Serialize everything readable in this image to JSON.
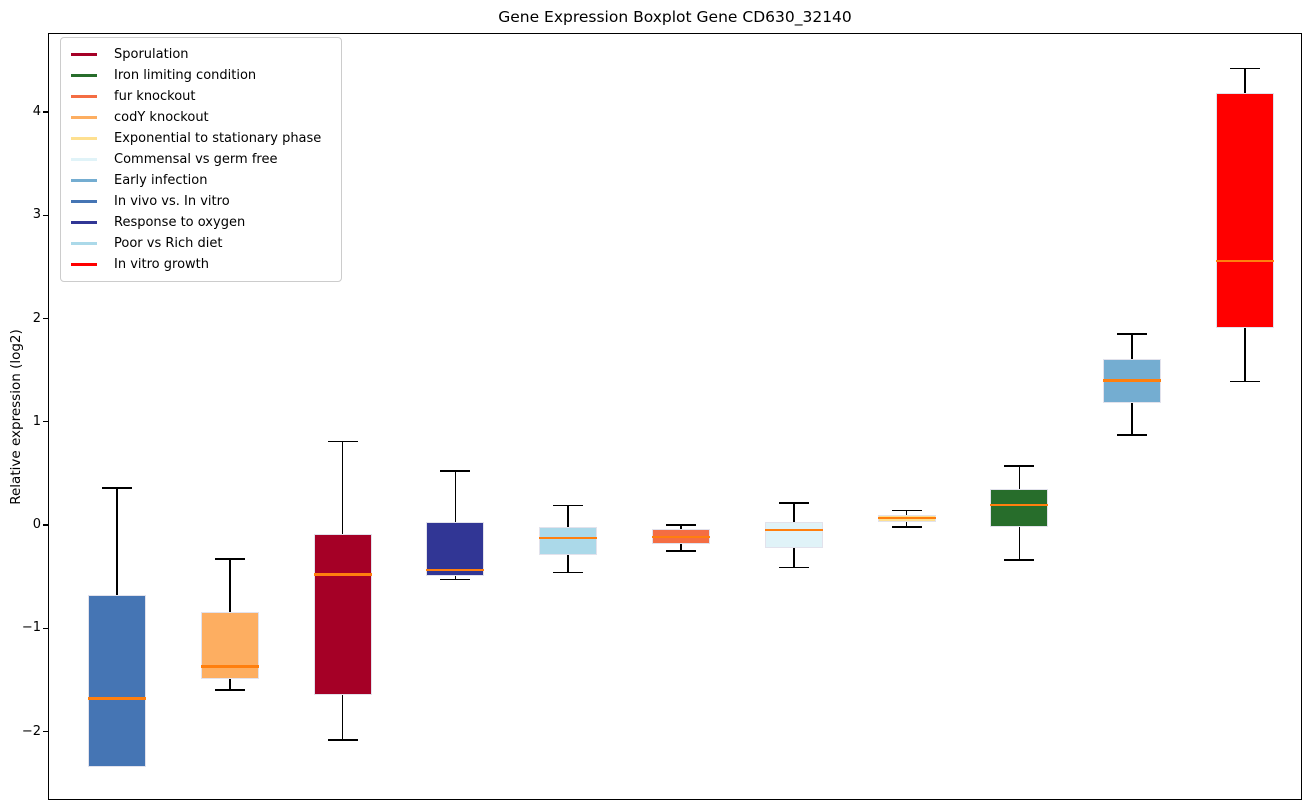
{
  "chart_data": {
    "type": "boxplot",
    "title": "Gene Expression Boxplot Gene CD630_32140",
    "ylabel": "Relative expression (log2)",
    "xlabel": "",
    "yticks": [
      -2,
      -1,
      0,
      1,
      2,
      3,
      4
    ],
    "ylim": [
      -2.66,
      4.77
    ],
    "grid": false,
    "legend_position": "upper left",
    "median_color": "#FF7F0E",
    "whisker_color": "#000000",
    "boxes": [
      {
        "label": "In vivo vs. In vitro",
        "color": "#4575B4",
        "whislo": -2.33,
        "q1": -2.33,
        "med": -1.67,
        "q3": -0.67,
        "whishi": 0.37
      },
      {
        "label": "codY knockout",
        "color": "#FDAE61",
        "whislo": -1.59,
        "q1": -1.48,
        "med": -1.36,
        "q3": -0.83,
        "whishi": -0.32
      },
      {
        "label": "Sporulation",
        "color": "#A50026",
        "whislo": -2.07,
        "q1": -1.64,
        "med": -0.47,
        "q3": -0.08,
        "whishi": 0.82
      },
      {
        "label": "Response to oxygen",
        "color": "#313695",
        "whislo": -0.52,
        "q1": -0.48,
        "med": -0.43,
        "q3": 0.04,
        "whishi": 0.53
      },
      {
        "label": "Poor vs Rich diet",
        "color": "#ABD9E9",
        "whislo": -0.45,
        "q1": -0.28,
        "med": -0.12,
        "q3": -0.01,
        "whishi": 0.2
      },
      {
        "label": "fur knockout",
        "color": "#F46D43",
        "whislo": -0.24,
        "q1": -0.17,
        "med": -0.11,
        "q3": -0.03,
        "whishi": 0.01
      },
      {
        "label": "Commensal vs germ free",
        "color": "#E0F3F8",
        "whislo": -0.4,
        "q1": -0.21,
        "med": -0.04,
        "q3": 0.04,
        "whishi": 0.22
      },
      {
        "label": "Exponential to stationary phase",
        "color": "#FEE090",
        "whislo": -0.01,
        "q1": 0.04,
        "med": 0.08,
        "q3": 0.11,
        "whishi": 0.15
      },
      {
        "label": "Iron limiting condition",
        "color": "#276D2B",
        "whislo": -0.33,
        "q1": -0.01,
        "med": 0.2,
        "q3": 0.36,
        "whishi": 0.58
      },
      {
        "label": "Early infection",
        "color": "#74ADD1",
        "whislo": 0.88,
        "q1": 1.19,
        "med": 1.41,
        "q3": 1.62,
        "whishi": 1.86
      },
      {
        "label": "In vitro growth",
        "color": "#FF0000",
        "whislo": 1.4,
        "q1": 1.92,
        "med": 2.57,
        "q3": 4.19,
        "whishi": 4.43
      }
    ],
    "legend": [
      {
        "label": "Sporulation",
        "color": "#A50026"
      },
      {
        "label": "Iron limiting condition",
        "color": "#276D2B"
      },
      {
        "label": "fur knockout",
        "color": "#F46D43"
      },
      {
        "label": "codY knockout",
        "color": "#FDAE61"
      },
      {
        "label": "Exponential to stationary phase",
        "color": "#FEE090"
      },
      {
        "label": "Commensal vs germ free",
        "color": "#E0F3F8"
      },
      {
        "label": "Early infection",
        "color": "#74ADD1"
      },
      {
        "label": "In vivo vs. In vitro",
        "color": "#4575B4"
      },
      {
        "label": "Response to oxygen",
        "color": "#313695"
      },
      {
        "label": "Poor vs Rich diet",
        "color": "#ABD9E9"
      },
      {
        "label": "In vitro growth",
        "color": "#FF0000"
      }
    ]
  }
}
